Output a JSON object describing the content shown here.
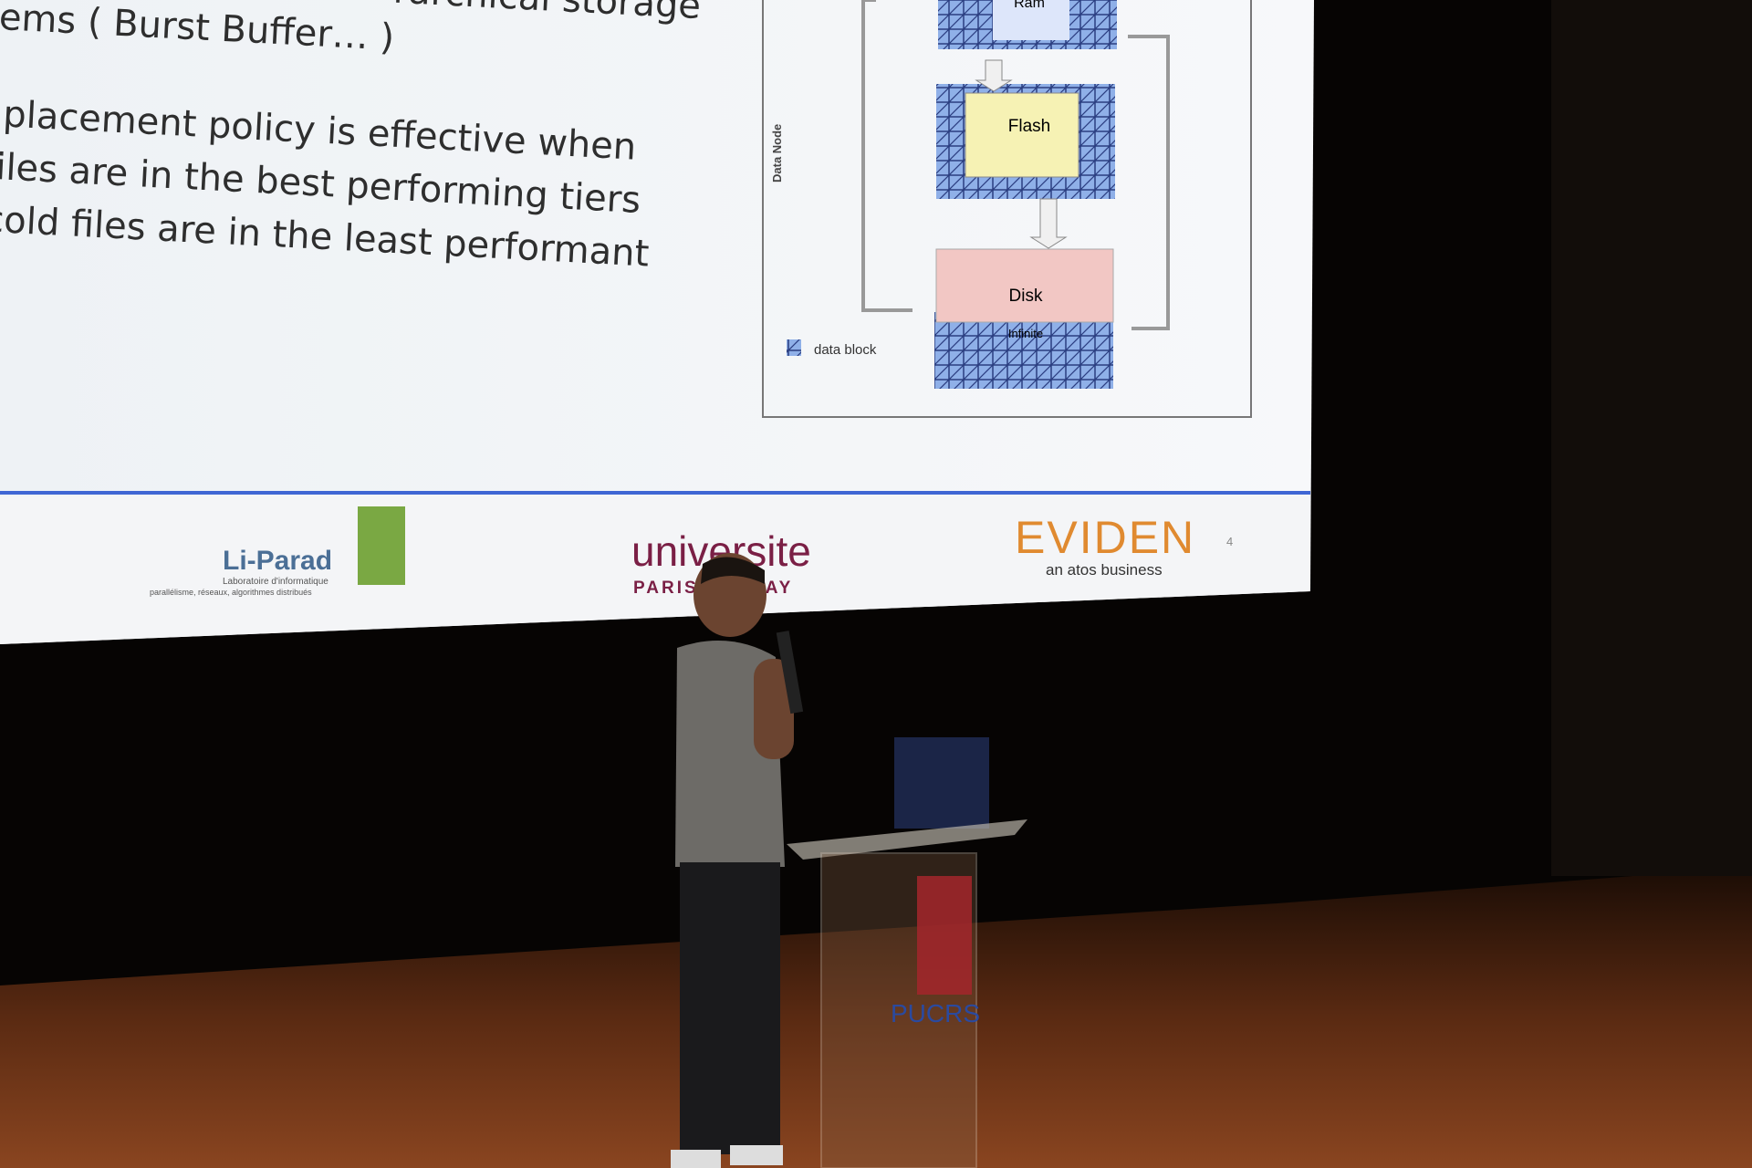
{
  "slide": {
    "bullets": [
      "rarchical storage",
      "ems ( Burst Buffer… )",
      "placement policy is effective when",
      "iles are in the best performing tiers",
      "cold files are in the least performant"
    ],
    "diagram": {
      "ram": "Ram",
      "flash": "Flash",
      "disk": "Disk",
      "disk_note": "Infinite",
      "node": "Data Node",
      "legend": "data block"
    },
    "footer": {
      "lab": "Li-Parad",
      "lab_line1": "Laboratoire d'informatique",
      "lab_line2": "parallélisme, réseaux, algorithmes distribués",
      "uni": "universite",
      "uni_sub": "PARIS-SACLAY",
      "company": "EVIDEN",
      "company_sub": "an atos business",
      "page": "4"
    }
  },
  "podium": {
    "logo": "PUCRS"
  }
}
